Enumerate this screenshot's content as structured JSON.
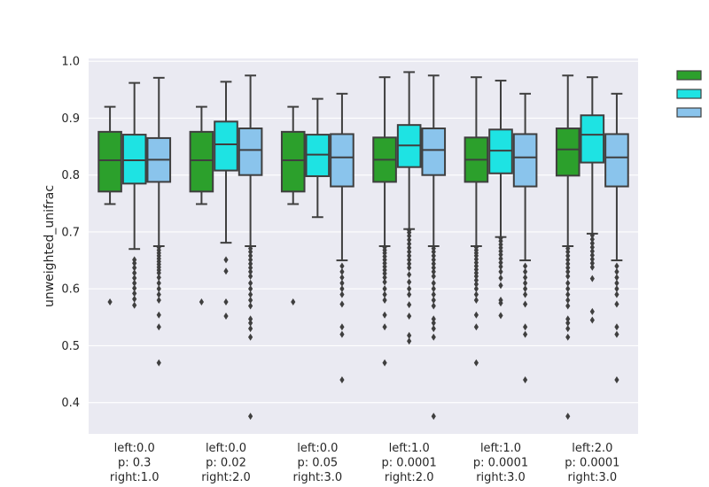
{
  "chart_data": {
    "type": "box",
    "ylabel": "unweighted_unifrac",
    "xlabel": "",
    "ylim": [
      0.345,
      1.005
    ],
    "yticks": [
      0.4,
      0.5,
      0.6,
      0.7,
      0.8,
      0.9,
      1.0
    ],
    "ytick_labels": [
      "0.4",
      "0.5",
      "0.6",
      "0.7",
      "0.8",
      "0.9",
      "1.0"
    ],
    "grid": true,
    "legend_position": "upper-right-outside",
    "categories": [
      [
        "left:0.0",
        "p: 0.3",
        "right:1.0"
      ],
      [
        "left:0.0",
        "p: 0.02",
        "right:2.0"
      ],
      [
        "left:0.0",
        "p: 0.05",
        "right:3.0"
      ],
      [
        "left:1.0",
        "p: 0.0001",
        "right:2.0"
      ],
      [
        "left:1.0",
        "p: 0.0001",
        "right:3.0"
      ],
      [
        "left:2.0",
        "p: 0.0001",
        "right:3.0"
      ]
    ],
    "series": [
      {
        "color": "#2ca02c"
      },
      {
        "color": "#1ee3e3"
      },
      {
        "color": "#8ac4ec"
      }
    ],
    "boxes": [
      [
        {
          "q1": 0.771,
          "median": 0.826,
          "q3": 0.876,
          "lo": 0.749,
          "hi": 0.92,
          "outliers": [
            0.577
          ]
        },
        {
          "q1": 0.785,
          "median": 0.826,
          "q3": 0.871,
          "lo": 0.67,
          "hi": 0.962,
          "outliers": [
            0.651,
            0.645,
            0.637,
            0.628,
            0.619,
            0.61,
            0.601,
            0.592,
            0.582,
            0.571
          ]
        },
        {
          "q1": 0.788,
          "median": 0.827,
          "q3": 0.865,
          "lo": 0.675,
          "hi": 0.971,
          "outliers": [
            0.673,
            0.668,
            0.663,
            0.658,
            0.653,
            0.648,
            0.643,
            0.638,
            0.633,
            0.628,
            0.62,
            0.61,
            0.6,
            0.59,
            0.58,
            0.554,
            0.533,
            0.47
          ]
        }
      ],
      [
        {
          "q1": 0.771,
          "median": 0.826,
          "q3": 0.876,
          "lo": 0.749,
          "hi": 0.92,
          "outliers": [
            0.577
          ]
        },
        {
          "q1": 0.808,
          "median": 0.854,
          "q3": 0.894,
          "lo": 0.681,
          "hi": 0.964,
          "outliers": [
            0.651,
            0.631,
            0.577,
            0.552
          ]
        },
        {
          "q1": 0.8,
          "median": 0.844,
          "q3": 0.882,
          "lo": 0.675,
          "hi": 0.975,
          "outliers": [
            0.671,
            0.665,
            0.658,
            0.651,
            0.644,
            0.637,
            0.63,
            0.622,
            0.61,
            0.6,
            0.59,
            0.58,
            0.57,
            0.547,
            0.54,
            0.53,
            0.515,
            0.376
          ]
        }
      ],
      [
        {
          "q1": 0.771,
          "median": 0.826,
          "q3": 0.876,
          "lo": 0.749,
          "hi": 0.92,
          "outliers": [
            0.577
          ]
        },
        {
          "q1": 0.798,
          "median": 0.836,
          "q3": 0.871,
          "lo": 0.726,
          "hi": 0.934,
          "outliers": []
        },
        {
          "q1": 0.78,
          "median": 0.831,
          "q3": 0.872,
          "lo": 0.65,
          "hi": 0.943,
          "outliers": [
            0.64,
            0.63,
            0.62,
            0.61,
            0.6,
            0.59,
            0.573,
            0.533,
            0.52,
            0.44
          ]
        }
      ],
      [
        {
          "q1": 0.788,
          "median": 0.827,
          "q3": 0.866,
          "lo": 0.675,
          "hi": 0.972,
          "outliers": [
            0.673,
            0.668,
            0.663,
            0.657,
            0.651,
            0.645,
            0.639,
            0.633,
            0.627,
            0.62,
            0.612,
            0.6,
            0.59,
            0.58,
            0.554,
            0.533,
            0.47
          ]
        },
        {
          "q1": 0.814,
          "median": 0.852,
          "q3": 0.888,
          "lo": 0.705,
          "hi": 0.981,
          "outliers": [
            0.703,
            0.699,
            0.693,
            0.686,
            0.679,
            0.672,
            0.665,
            0.658,
            0.651,
            0.644,
            0.637,
            0.625,
            0.612,
            0.6,
            0.59,
            0.572,
            0.552,
            0.518,
            0.508
          ]
        },
        {
          "q1": 0.8,
          "median": 0.844,
          "q3": 0.882,
          "lo": 0.675,
          "hi": 0.975,
          "outliers": [
            0.671,
            0.665,
            0.658,
            0.651,
            0.644,
            0.637,
            0.63,
            0.622,
            0.61,
            0.6,
            0.59,
            0.58,
            0.57,
            0.547,
            0.54,
            0.53,
            0.515,
            0.376
          ]
        }
      ],
      [
        {
          "q1": 0.788,
          "median": 0.827,
          "q3": 0.866,
          "lo": 0.675,
          "hi": 0.972,
          "outliers": [
            0.673,
            0.668,
            0.663,
            0.658,
            0.652,
            0.646,
            0.64,
            0.634,
            0.628,
            0.622,
            0.615,
            0.608,
            0.6,
            0.59,
            0.58,
            0.554,
            0.533,
            0.47
          ]
        },
        {
          "q1": 0.803,
          "median": 0.843,
          "q3": 0.88,
          "lo": 0.691,
          "hi": 0.966,
          "outliers": [
            0.689,
            0.684,
            0.678,
            0.672,
            0.666,
            0.66,
            0.653,
            0.646,
            0.639,
            0.63,
            0.619,
            0.606,
            0.58,
            0.575,
            0.553
          ]
        },
        {
          "q1": 0.78,
          "median": 0.831,
          "q3": 0.872,
          "lo": 0.65,
          "hi": 0.943,
          "outliers": [
            0.64,
            0.63,
            0.62,
            0.61,
            0.6,
            0.59,
            0.573,
            0.533,
            0.52,
            0.44
          ]
        }
      ],
      [
        {
          "q1": 0.799,
          "median": 0.845,
          "q3": 0.882,
          "lo": 0.675,
          "hi": 0.975,
          "outliers": [
            0.671,
            0.665,
            0.658,
            0.651,
            0.644,
            0.637,
            0.63,
            0.622,
            0.61,
            0.6,
            0.59,
            0.58,
            0.57,
            0.547,
            0.54,
            0.53,
            0.515,
            0.376
          ]
        },
        {
          "q1": 0.822,
          "median": 0.871,
          "q3": 0.905,
          "lo": 0.697,
          "hi": 0.972,
          "outliers": [
            0.694,
            0.687,
            0.68,
            0.673,
            0.666,
            0.659,
            0.652,
            0.645,
            0.638,
            0.618,
            0.56,
            0.545
          ]
        },
        {
          "q1": 0.78,
          "median": 0.831,
          "q3": 0.872,
          "lo": 0.65,
          "hi": 0.943,
          "outliers": [
            0.64,
            0.63,
            0.62,
            0.61,
            0.6,
            0.59,
            0.573,
            0.533,
            0.52,
            0.44
          ]
        }
      ]
    ]
  }
}
